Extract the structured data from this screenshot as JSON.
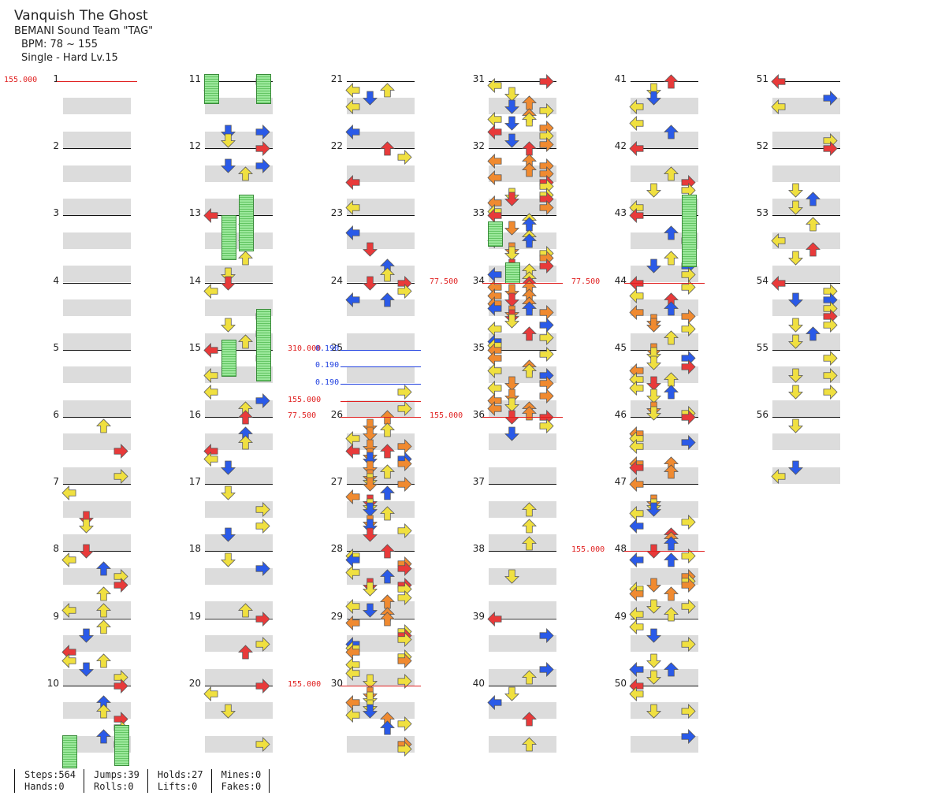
{
  "song": {
    "title": "Vanquish The Ghost",
    "artist": "BEMANI Sound Team \"TAG\"",
    "bpm_text": "BPM: 78 ~ 155",
    "difficulty_text": "Single - Hard  Lv.15"
  },
  "colors": {
    "left": "#e03030",
    "down": "#2050e0",
    "up": "#e03030",
    "right": "#e03030",
    "quarter_red": "#e83a3a",
    "eighth_blue": "#2a5ae8",
    "sixteenth_yellow": "#f0e040",
    "twelfth_orange": "#f08a30",
    "hold_green": "#7ed87e",
    "stripe": "#dcdcdc"
  },
  "measures": [
    "1",
    "2",
    "3",
    "4",
    "5",
    "6",
    "7",
    "8",
    "9",
    "10",
    "11",
    "12",
    "13",
    "14",
    "15",
    "16",
    "17",
    "18",
    "19",
    "20",
    "21",
    "22",
    "23",
    "24",
    "25",
    "26",
    "27",
    "28",
    "29",
    "30",
    "31",
    "32",
    "33",
    "34",
    "35",
    "36",
    "37",
    "38",
    "39",
    "40",
    "41",
    "42",
    "43",
    "44",
    "45",
    "46",
    "47",
    "48",
    "49",
    "50",
    "51",
    "52",
    "53",
    "54",
    "55",
    "56"
  ],
  "bpm_changes": [
    {
      "text": "155.000",
      "measure": 1,
      "color": "red"
    },
    {
      "text": "310.000",
      "measure": 25,
      "color": "red"
    },
    {
      "text": "0.190",
      "measure": 25,
      "color": "blue"
    },
    {
      "text": "0.190",
      "measure": 25.25,
      "color": "blue"
    },
    {
      "text": "0.190",
      "measure": 25.5,
      "color": "blue"
    },
    {
      "text": "155.000",
      "measure": 25.75,
      "color": "red"
    },
    {
      "text": "77.500",
      "measure": 26,
      "color": "red"
    },
    {
      "text": "155.000",
      "measure": 30,
      "color": "red"
    },
    {
      "text": "77.500",
      "measure": 34,
      "color": "red"
    },
    {
      "text": "155.000",
      "measure": 36,
      "color": "red"
    },
    {
      "text": "77.500",
      "measure": 44,
      "color": "red"
    },
    {
      "text": "155.000",
      "measure": 48,
      "color": "red"
    }
  ],
  "stats": {
    "steps": "Steps:564",
    "jumps": "Jumps:39",
    "holds": "Holds:27",
    "mines": "Mines:0",
    "hands": "Hands:0",
    "rolls": "Rolls:0",
    "lifts": "Lifts:0",
    "fakes": "Fakes:0"
  }
}
